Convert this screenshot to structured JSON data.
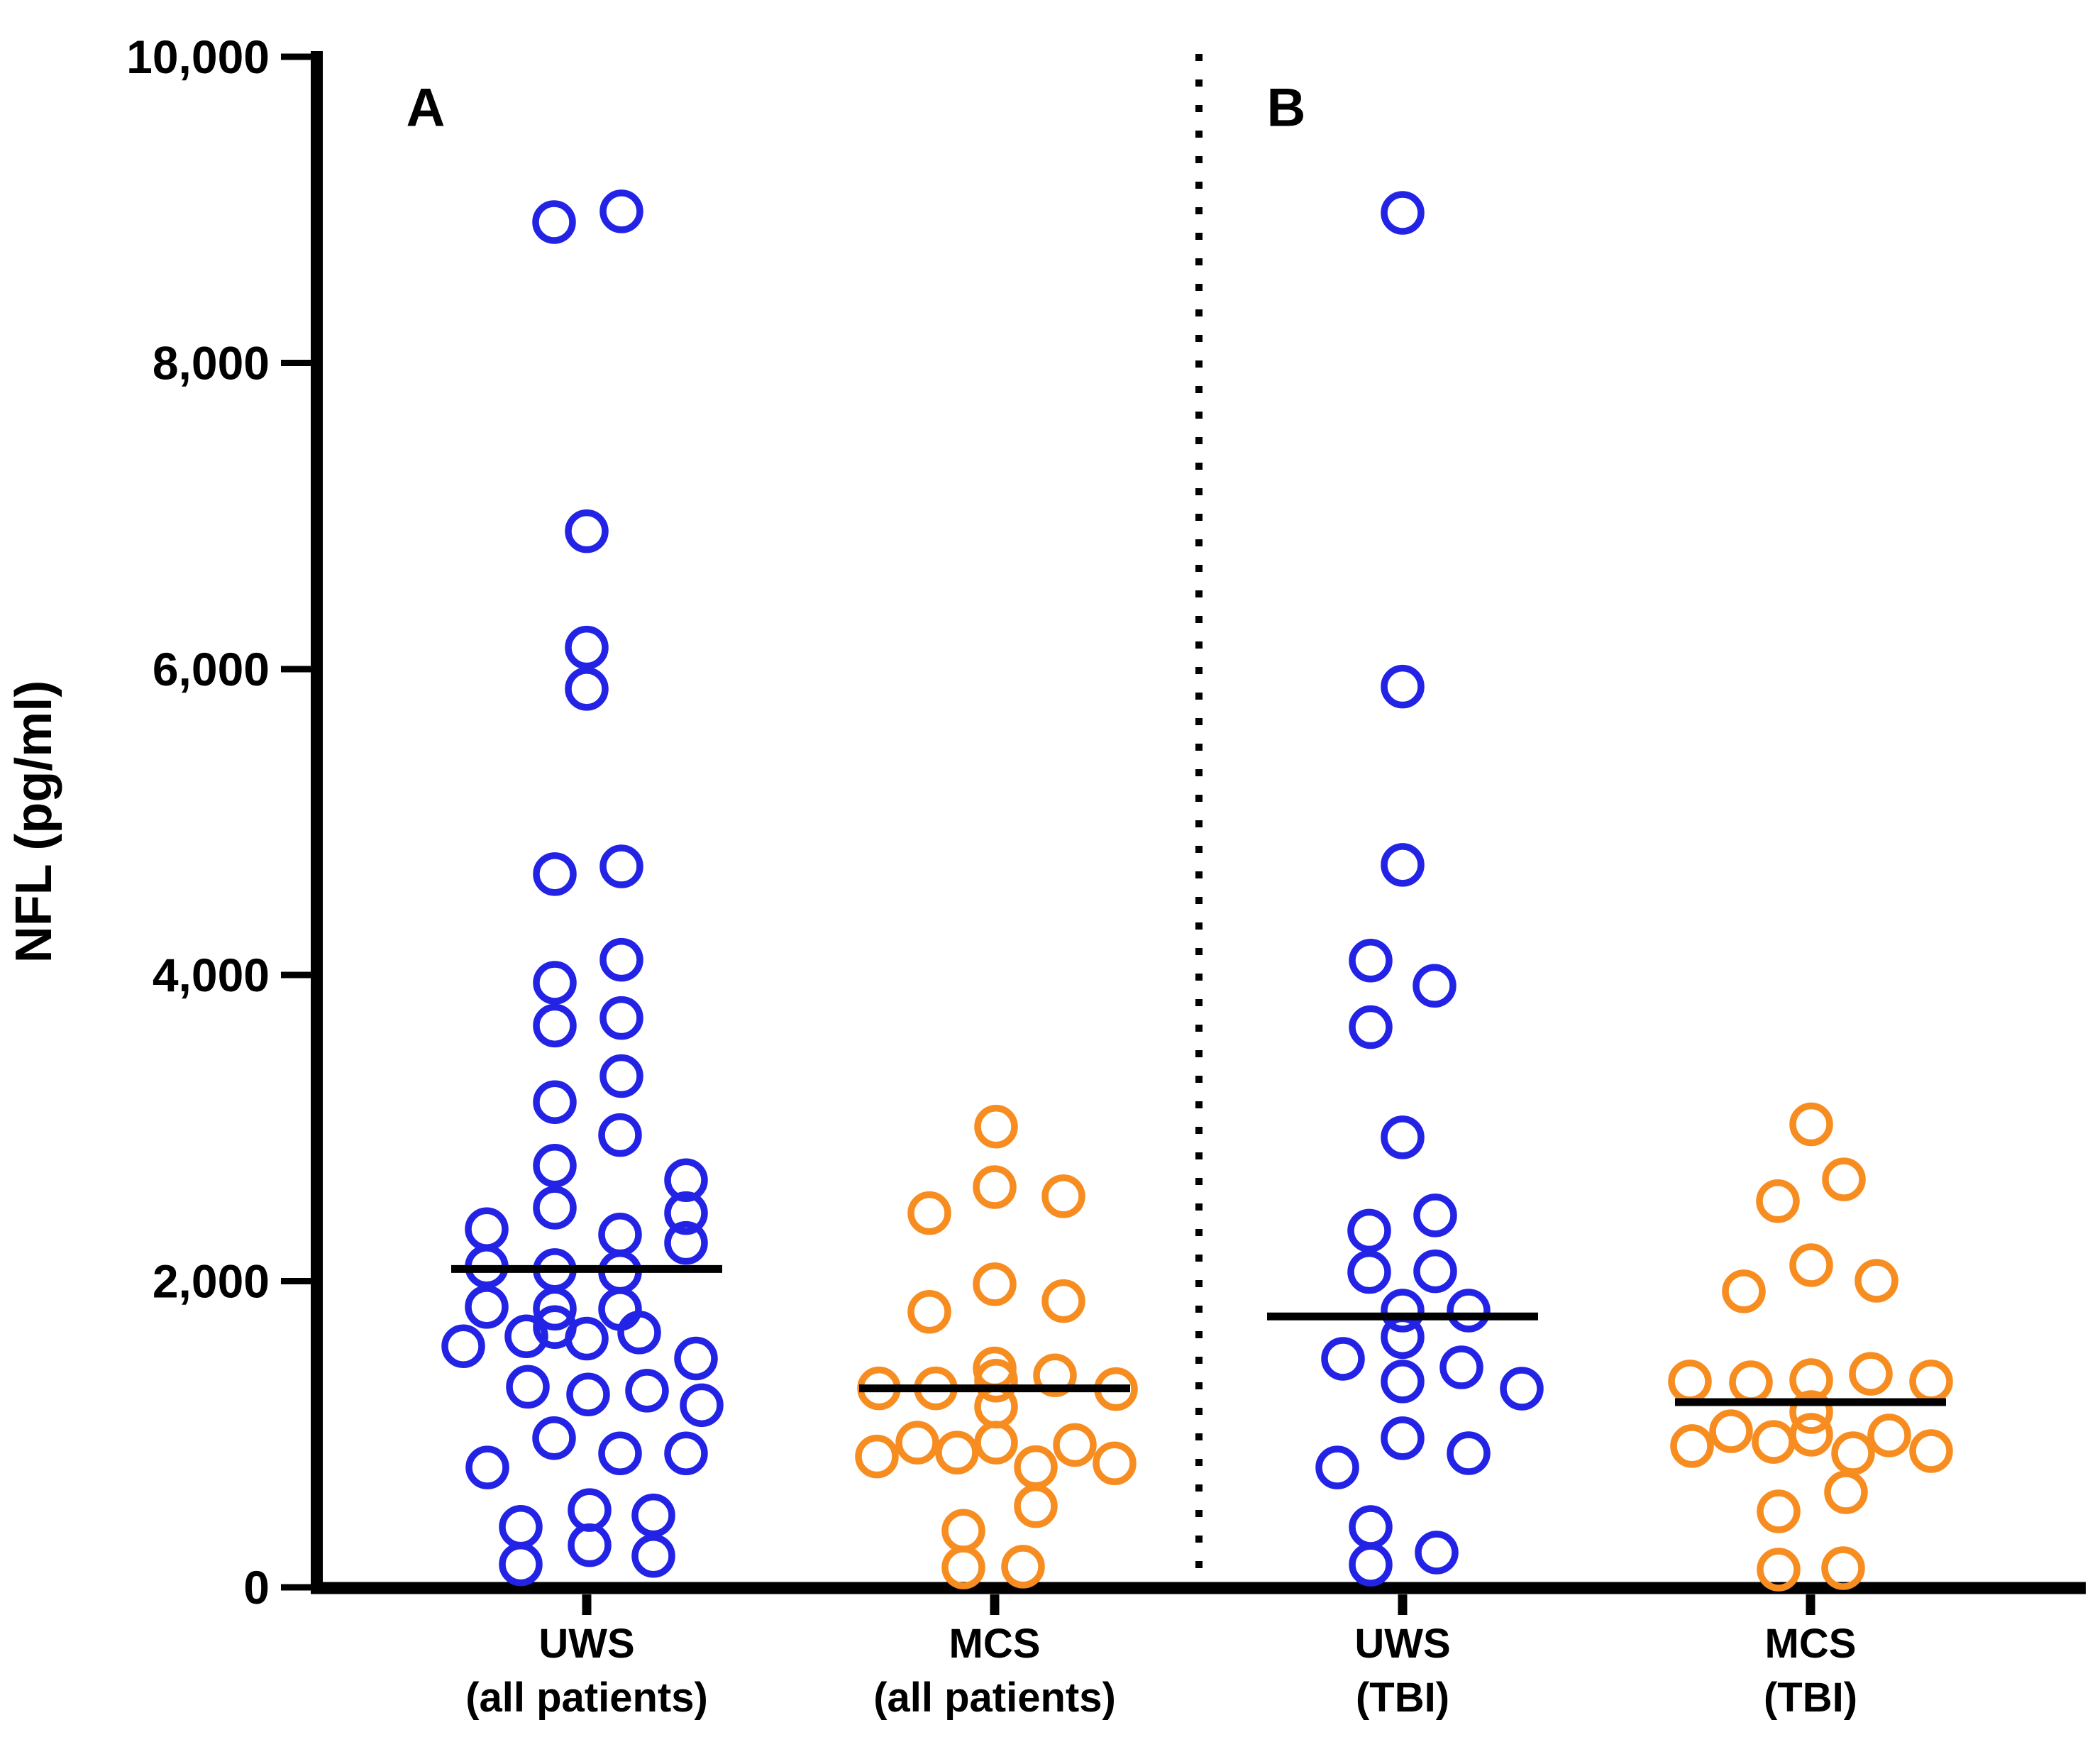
{
  "chart_data": {
    "type": "scatter",
    "title": "",
    "ylabel": "NFL (pg/ml)",
    "xlabel": "",
    "ylim": [
      0,
      10000
    ],
    "yticks": [
      0,
      2000,
      4000,
      6000,
      8000,
      10000
    ],
    "ytick_labels": [
      "0",
      "2,000",
      "4,000",
      "6,000",
      "8,000",
      "10,000"
    ],
    "grid": false,
    "legend": "none",
    "marker": "open-circle",
    "colors": {
      "uws_blue": "#2323E6",
      "mcs_orange": "#F78D20",
      "axis_black": "#000000"
    },
    "panels": [
      {
        "label": "A",
        "groups": [
          {
            "id": "uws-all-patients",
            "line1": "UWS",
            "line2": "(all patients)",
            "color": "uws_blue",
            "median": 2080,
            "points": [
              [
                -46,
                8920
              ],
              [
                49,
                8990
              ],
              [
                0,
                6900
              ],
              [
                0,
                6140
              ],
              [
                0,
                5870
              ],
              [
                -45,
                4660
              ],
              [
                49,
                4710
              ],
              [
                49,
                4100
              ],
              [
                -45,
                3950
              ],
              [
                49,
                3720
              ],
              [
                -45,
                3670
              ],
              [
                49,
                3340
              ],
              [
                -45,
                3170
              ],
              [
                47,
                2955
              ],
              [
                -45,
                2755
              ],
              [
                140,
                2660
              ],
              [
                -45,
                2480
              ],
              [
                140,
                2445
              ],
              [
                -141,
                2340
              ],
              [
                47,
                2305
              ],
              [
                140,
                2250
              ],
              [
                -141,
                2096
              ],
              [
                -45,
                2073
              ],
              [
                47,
                2060
              ],
              [
                -141,
                1832
              ],
              [
                -45,
                1820
              ],
              [
                47,
                1818
              ],
              [
                -45,
                1700
              ],
              [
                -174,
                1575
              ],
              [
                -85,
                1640
              ],
              [
                0,
                1625
              ],
              [
                74,
                1665
              ],
              [
                154,
                1495
              ],
              [
                -83,
                1310
              ],
              [
                2,
                1260
              ],
              [
                85,
                1285
              ],
              [
                162,
                1190
              ],
              [
                -46,
                975
              ],
              [
                47,
                875
              ],
              [
                140,
                875
              ],
              [
                -140,
                783
              ],
              [
                4,
                505
              ],
              [
                4,
                275
              ],
              [
                -93,
                395
              ],
              [
                -93,
                150
              ],
              [
                94,
                470
              ],
              [
                94,
                205
              ]
            ]
          },
          {
            "id": "mcs-all-patients",
            "line1": "MCS",
            "line2": "(all patients)",
            "color": "mcs_orange",
            "median": 1300,
            "points": [
              [
                2,
                3010
              ],
              [
                0,
                2615
              ],
              [
                97,
                2555
              ],
              [
                -92,
                2445
              ],
              [
                0,
                1980
              ],
              [
                97,
                1870
              ],
              [
                -92,
                1800
              ],
              [
                0,
                1430
              ],
              [
                -163,
                1300
              ],
              [
                -83,
                1300
              ],
              [
                2,
                1350
              ],
              [
                85,
                1385
              ],
              [
                171,
                1295
              ],
              [
                2,
                1180
              ],
              [
                2,
                945
              ],
              [
                -166,
                855
              ],
              [
                -109,
                945
              ],
              [
                -53,
                880
              ],
              [
                58,
                785
              ],
              [
                113,
                930
              ],
              [
                169,
                810
              ],
              [
                58,
                530
              ],
              [
                -44,
                370
              ],
              [
                -44,
                130
              ],
              [
                40,
                135
              ]
            ]
          }
        ]
      },
      {
        "label": "B",
        "groups": [
          {
            "id": "uws-tbi",
            "line1": "UWS",
            "line2": "(TBI)",
            "color": "uws_blue",
            "median": 1770,
            "points": [
              [
                0,
                8980
              ],
              [
                0,
                5885
              ],
              [
                0,
                4720
              ],
              [
                -45,
                4095
              ],
              [
                45,
                3930
              ],
              [
                -45,
                3660
              ],
              [
                0,
                2940
              ],
              [
                46,
                2430
              ],
              [
                -47,
                2330
              ],
              [
                46,
                2065
              ],
              [
                -47,
                2060
              ],
              [
                0,
                1808
              ],
              [
                93,
                1808
              ],
              [
                0,
                1635
              ],
              [
                0,
                1345
              ],
              [
                -84,
                1493
              ],
              [
                83,
                1437
              ],
              [
                168,
                1298
              ],
              [
                0,
                974
              ],
              [
                93,
                876
              ],
              [
                -92,
                783
              ],
              [
                -45,
                394
              ],
              [
                -45,
                148
              ],
              [
                48,
                227
              ]
            ]
          },
          {
            "id": "mcs-tbi",
            "line1": "MCS",
            "line2": "(TBI)",
            "color": "mcs_orange",
            "median": 1210,
            "points": [
              [
                1,
                3025
              ],
              [
                47,
                2665
              ],
              [
                -46,
                2523
              ],
              [
                1,
                2105
              ],
              [
                93,
                2003
              ],
              [
                -94,
                1934
              ],
              [
                -170,
                1345
              ],
              [
                -84,
                1340
              ],
              [
                1,
                1354
              ],
              [
                85,
                1395
              ],
              [
                170,
                1345
              ],
              [
                1,
                1145
              ],
              [
                1,
                997
              ],
              [
                -167,
                923
              ],
              [
                -112,
                1020
              ],
              [
                -52,
                950
              ],
              [
                60,
                876
              ],
              [
                111,
                992
              ],
              [
                170,
                890
              ],
              [
                50,
                621
              ],
              [
                -45,
                496
              ],
              [
                -45,
                116
              ],
              [
                46,
                125
              ]
            ]
          }
        ]
      }
    ]
  }
}
